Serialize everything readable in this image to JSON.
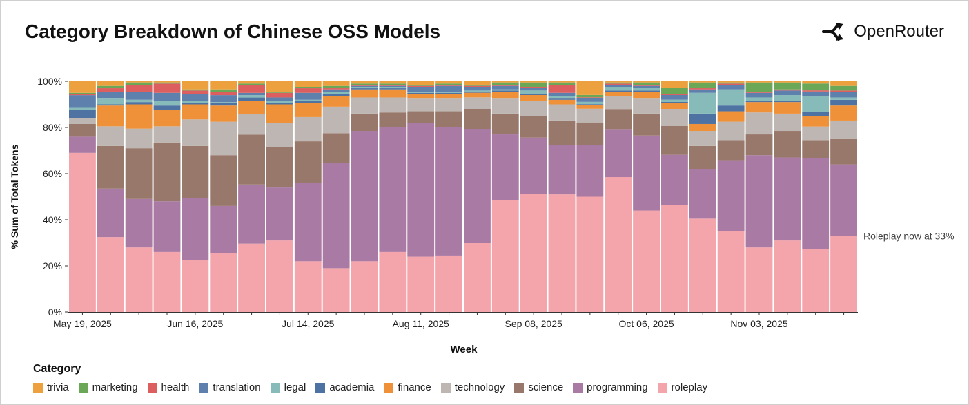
{
  "title": "Category Breakdown of Chinese OSS Models",
  "brand": {
    "name": "OpenRouter",
    "icon": "openrouter-logo-icon"
  },
  "chart_data": {
    "type": "bar",
    "stacked": true,
    "title": "Category Breakdown of Chinese OSS Models",
    "xlabel": "Week",
    "ylabel": "% Sum of Total Tokens",
    "ylim": [
      0,
      100
    ],
    "yticks": [
      "0%",
      "20%",
      "40%",
      "60%",
      "80%",
      "100%"
    ],
    "xtick_labels": [
      {
        "index": 0,
        "label": "May 19, 2025"
      },
      {
        "index": 4,
        "label": "Jun 16, 2025"
      },
      {
        "index": 8,
        "label": "Jul 14, 2025"
      },
      {
        "index": 12,
        "label": "Aug 11, 2025"
      },
      {
        "index": 16,
        "label": "Sep 08, 2025"
      },
      {
        "index": 20,
        "label": "Oct 06, 2025"
      },
      {
        "index": 24,
        "label": "Nov 03, 2025"
      }
    ],
    "annotation": {
      "text": "Roleplay now at 33%",
      "value": 33
    },
    "legend_title": "Category",
    "legend": [
      "trivia",
      "marketing",
      "health",
      "translation",
      "legal",
      "academia",
      "finance",
      "technology",
      "science",
      "programming",
      "roleplay"
    ],
    "series": [
      {
        "name": "roleplay",
        "color": "#f4a4ab",
        "values": [
          69,
          32.5,
          28,
          26,
          22.5,
          25.5,
          29.5,
          31,
          22,
          19,
          22,
          26,
          24,
          24.5,
          30,
          48.5,
          51.5,
          51,
          50.5,
          58.5,
          44,
          46.5,
          40.5,
          35,
          28,
          31,
          28,
          33
        ]
      },
      {
        "name": "programming",
        "color": "#a97aa3",
        "values": [
          7,
          21,
          21,
          22,
          27,
          20.5,
          25.5,
          23,
          34,
          45.5,
          56.5,
          54,
          58,
          55.5,
          49.5,
          28.5,
          24.5,
          21.5,
          22.5,
          20.5,
          32.5,
          22,
          21.5,
          30.5,
          40,
          36,
          40,
          31
        ]
      },
      {
        "name": "science",
        "color": "#98786a",
        "values": [
          5.5,
          18.5,
          22,
          25.5,
          22.5,
          22,
          21.5,
          17.5,
          18,
          13,
          7.5,
          6.5,
          5,
          7,
          9,
          9,
          9.5,
          10.5,
          10,
          9,
          9.5,
          12.5,
          10,
          9,
          9,
          11.5,
          8,
          11
        ]
      },
      {
        "name": "technology",
        "color": "#bdb6b2",
        "values": [
          2.5,
          8.5,
          8.5,
          7,
          11.5,
          14.5,
          9,
          10.5,
          10.5,
          11.5,
          7,
          6.5,
          5.5,
          5.5,
          5,
          6.5,
          6.5,
          7,
          6,
          5.5,
          6.5,
          7.5,
          6.5,
          8,
          9.5,
          7.5,
          6,
          8
        ]
      },
      {
        "name": "finance",
        "color": "#ee9139",
        "values": [
          0,
          9,
          10.5,
          7,
          6.5,
          7,
          5.5,
          8,
          6,
          4.5,
          3.5,
          3.5,
          2,
          2,
          2,
          3,
          2.5,
          2,
          1.5,
          2,
          3,
          2.5,
          3,
          4.5,
          4.5,
          5,
          4.5,
          6.5
        ]
      },
      {
        "name": "academia",
        "color": "#4e73a3",
        "values": [
          3.5,
          0.5,
          1,
          2,
          0.5,
          1,
          1.5,
          0.5,
          1,
          1,
          0.5,
          0.5,
          0.5,
          0.5,
          0.5,
          0.5,
          0.5,
          0.5,
          0.5,
          0.5,
          0.5,
          0.5,
          4.5,
          2.5,
          0.5,
          0.5,
          2,
          2.5
        ]
      },
      {
        "name": "legal",
        "color": "#86bbb9",
        "values": [
          1,
          2.5,
          1,
          2,
          1,
          0.5,
          1,
          1,
          0.5,
          1,
          0.5,
          0.5,
          0.5,
          0.5,
          0.5,
          0.5,
          1.5,
          1,
          1,
          1.5,
          1,
          1,
          9,
          7,
          1.5,
          2.5,
          7,
          1
        ]
      },
      {
        "name": "translation",
        "color": "#5e80ad",
        "values": [
          5.5,
          3,
          3.5,
          3.5,
          3,
          3,
          1,
          1.5,
          3,
          1,
          0.5,
          0.5,
          2,
          2.5,
          1.5,
          1.5,
          1,
          1.5,
          1.5,
          1,
          1,
          2,
          1.5,
          2,
          2,
          2,
          2,
          2.5
        ]
      },
      {
        "name": "health",
        "color": "#dd5e5e",
        "values": [
          0.5,
          1.5,
          3,
          4,
          1.5,
          1.5,
          3.5,
          2,
          2,
          0.5,
          0.5,
          0.5,
          0.5,
          0.5,
          0.5,
          0.5,
          0.5,
          3.5,
          0.5,
          0.5,
          0.5,
          0.5,
          0.5,
          0.5,
          0.5,
          0.5,
          0.5,
          0.5
        ]
      },
      {
        "name": "marketing",
        "color": "#6aa858",
        "values": [
          0.5,
          1,
          1,
          0.5,
          0.5,
          1,
          0.5,
          0.5,
          0.5,
          1,
          0.5,
          0.5,
          0.5,
          0.5,
          0.5,
          1,
          2,
          1,
          1,
          0.5,
          1,
          2.5,
          2.5,
          0.5,
          4,
          3,
          3,
          2
        ]
      },
      {
        "name": "trivia",
        "color": "#eda13e",
        "values": [
          5,
          2,
          0.5,
          0.5,
          3.5,
          3.5,
          1,
          4.5,
          2.5,
          2,
          1,
          1,
          1.5,
          1,
          1.5,
          0.5,
          0.5,
          0.5,
          6,
          0.5,
          0.5,
          3,
          0.5,
          0.5,
          0.5,
          0.5,
          1,
          2
        ]
      }
    ]
  }
}
